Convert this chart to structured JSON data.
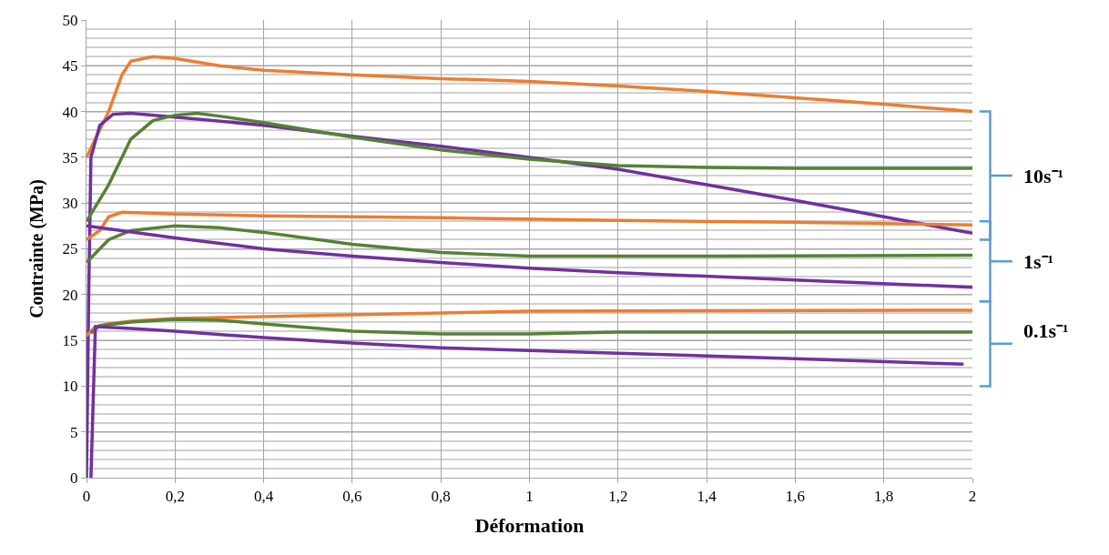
{
  "chart_data": {
    "type": "line",
    "xlabel": "Déformation",
    "ylabel": "Contrainte (MPa)",
    "xlim": [
      0,
      2
    ],
    "ylim": [
      0,
      50
    ],
    "xticks": [
      0,
      {
        "value": 0.2,
        "label": "0,2"
      },
      {
        "value": 0.4,
        "label": "0,4"
      },
      {
        "value": 0.6,
        "label": "0,6"
      },
      {
        "value": 0.8,
        "label": "0,8"
      },
      1,
      {
        "value": 1.2,
        "label": "1,2"
      },
      {
        "value": 1.4,
        "label": "1,4"
      },
      {
        "value": 1.6,
        "label": "1,6"
      },
      {
        "value": 1.8,
        "label": "1,8"
      },
      2
    ],
    "yticks": [
      0,
      5,
      10,
      15,
      20,
      25,
      30,
      35,
      40,
      45,
      50
    ],
    "grid": true,
    "marker": "none",
    "line_style": "solid",
    "series": [
      {
        "color": "#ed7d31",
        "x": [
          0,
          0.02,
          0.05,
          0.08,
          0.1,
          0.15,
          0.2,
          0.3,
          0.4,
          0.6,
          0.8,
          1.0,
          1.2,
          1.4,
          1.6,
          1.8,
          2.0
        ],
        "values": [
          35,
          37,
          40,
          44,
          45.5,
          46,
          45.8,
          45,
          44.5,
          44,
          43.6,
          43.3,
          42.8,
          42.2,
          41.5,
          40.8,
          40
        ]
      },
      {
        "color": "#7030a0",
        "x": [
          0,
          0.005,
          0.01,
          0.03,
          0.06,
          0.1,
          0.2,
          0.4,
          0.6,
          0.8,
          1.0,
          1.2,
          1.4,
          1.6,
          1.8,
          2.0
        ],
        "values": [
          0,
          20,
          35,
          38.5,
          39.7,
          39.8,
          39.4,
          38.5,
          37.3,
          36.2,
          35,
          33.7,
          32,
          30.3,
          28.5,
          26.7
        ]
      },
      {
        "color": "#548235",
        "x": [
          0,
          0.05,
          0.08,
          0.1,
          0.15,
          0.2,
          0.25,
          0.3,
          0.4,
          0.6,
          0.8,
          1.0,
          1.2,
          1.4,
          1.6,
          2.0
        ],
        "values": [
          28,
          32,
          35,
          37,
          39,
          39.6,
          39.8,
          39.5,
          38.8,
          37.2,
          35.8,
          34.8,
          34.1,
          33.9,
          33.8,
          33.8
        ]
      },
      {
        "color": "#ed7d31",
        "x": [
          0,
          0.03,
          0.05,
          0.08,
          0.2,
          0.4,
          0.8,
          1.2,
          1.6,
          2.0
        ],
        "values": [
          26,
          27,
          28.5,
          29,
          28.8,
          28.6,
          28.4,
          28.1,
          27.9,
          27.6
        ]
      },
      {
        "color": "#548235",
        "x": [
          0,
          0.02,
          0.05,
          0.1,
          0.2,
          0.3,
          0.4,
          0.6,
          0.8,
          1.0,
          1.4,
          2.0
        ],
        "values": [
          23.5,
          24.5,
          26,
          27,
          27.5,
          27.3,
          26.8,
          25.5,
          24.6,
          24.2,
          24.2,
          24.3
        ]
      },
      {
        "color": "#7030a0",
        "x": [
          0,
          0.2,
          0.4,
          0.6,
          0.8,
          1.0,
          1.2,
          1.6,
          2.0
        ],
        "values": [
          27.5,
          26.2,
          25,
          24.2,
          23.5,
          22.9,
          22.4,
          21.6,
          20.8
        ]
      },
      {
        "color": "#ed7d31",
        "x": [
          0,
          0.02,
          0.05,
          0.1,
          0.2,
          0.4,
          0.6,
          0.8,
          1.0,
          2.0
        ],
        "values": [
          15.5,
          16.5,
          16.8,
          17.1,
          17.4,
          17.6,
          17.8,
          18.0,
          18.2,
          18.3
        ]
      },
      {
        "color": "#548235",
        "x": [
          0.01,
          0.03,
          0.1,
          0.2,
          0.3,
          0.4,
          0.6,
          0.8,
          1.0,
          1.2,
          2.0
        ],
        "values": [
          15.8,
          16.6,
          17,
          17.3,
          17.2,
          16.8,
          16,
          15.7,
          15.7,
          15.9,
          15.9
        ]
      },
      {
        "color": "#7030a0",
        "x": [
          0.01,
          0.02,
          0.1,
          0.2,
          0.4,
          0.6,
          0.8,
          1.0,
          1.2,
          1.6,
          1.98
        ],
        "values": [
          0,
          16.5,
          16.3,
          16,
          15.3,
          14.7,
          14.2,
          13.9,
          13.6,
          13,
          12.4
        ]
      }
    ],
    "annotations": [
      "10s⁻¹",
      "1s⁻¹",
      "0.1s⁻¹"
    ]
  }
}
